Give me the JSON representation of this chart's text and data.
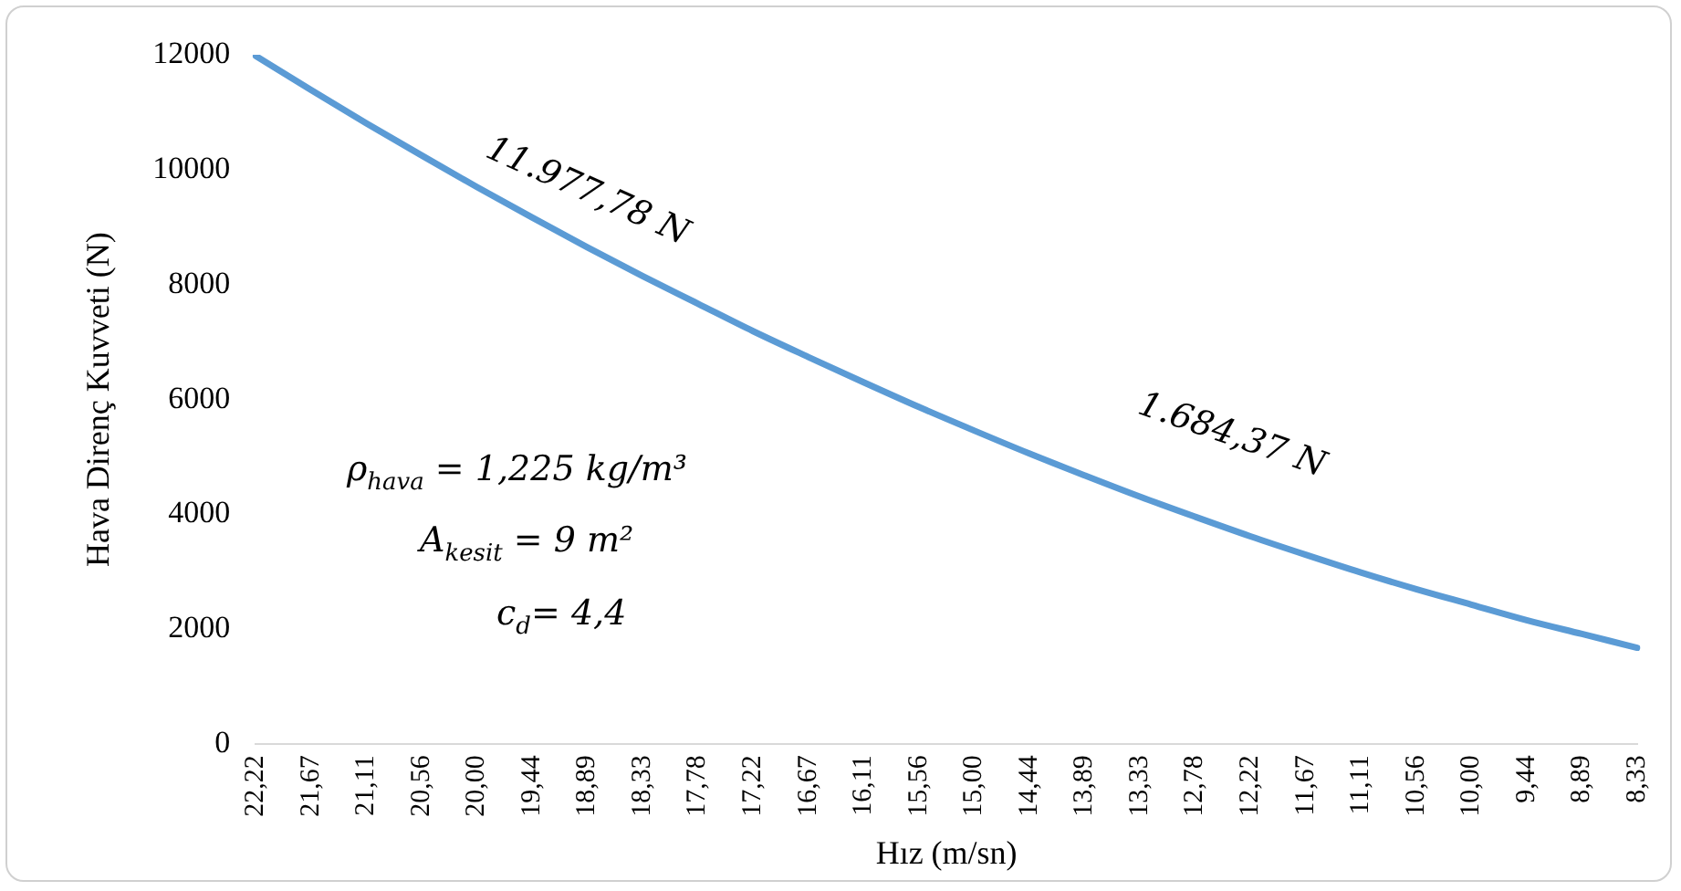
{
  "chart_data": {
    "type": "line",
    "xlabel": "Hız (m/sn)",
    "ylabel": "Hava Direnç Kuvveti (N)",
    "categories": [
      "22,22",
      "21,67",
      "21,11",
      "20,56",
      "20,00",
      "19,44",
      "18,89",
      "18,33",
      "17,78",
      "17,22",
      "16,67",
      "16,11",
      "15,56",
      "15,00",
      "14,44",
      "13,89",
      "13,33",
      "12,78",
      "12,22",
      "11,67",
      "11,11",
      "10,56",
      "10,00",
      "9,44",
      "8,89",
      "8,33"
    ],
    "series": [
      {
        "color": "#5b9bd5",
        "values": [
          11980,
          11390,
          10810,
          10250,
          9700,
          9170,
          8650,
          8150,
          7670,
          7190,
          6740,
          6300,
          5870,
          5460,
          5060,
          4680,
          4310,
          3960,
          3620,
          3300,
          2990,
          2700,
          2430,
          2160,
          1920,
          1680
        ]
      }
    ],
    "ylim": [
      0,
      12000
    ],
    "yticks": [
      0,
      2000,
      4000,
      6000,
      8000,
      10000,
      12000
    ],
    "grid": false,
    "legend": false,
    "marker": "none",
    "line_style": "solid",
    "annotations": [
      "11.977,78 N",
      "1.684,37 N",
      "ρ$_{hava}$ = 1,225 kg/m³",
      "A$_{kesit}$ = 9 m²",
      "c$_{d}$= 4,4"
    ]
  }
}
